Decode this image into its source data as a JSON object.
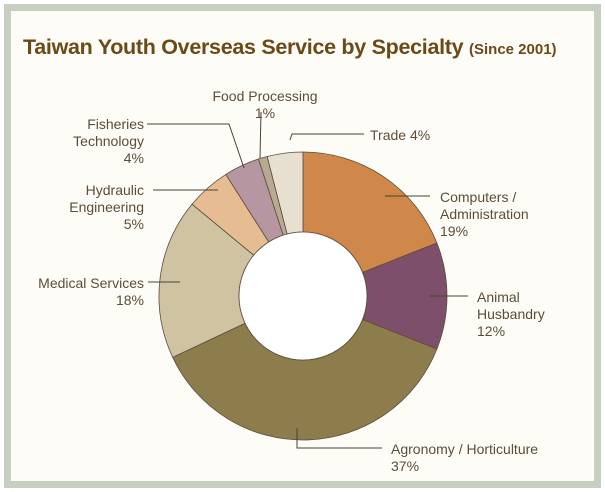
{
  "chart_data": {
    "type": "pie",
    "title": "Taiwan Youth Overseas Service by Specialty",
    "subtitle": "(Since 2001)",
    "slices": [
      {
        "label": "Computers / Administration",
        "label_lines": [
          "Computers /",
          "Administration"
        ],
        "value": 19,
        "value_text": "19%",
        "color": "#d0884a"
      },
      {
        "label": "Animal Husbandry",
        "label_lines": [
          "Animal",
          "Husbandry"
        ],
        "value": 12,
        "value_text": "12%",
        "color": "#7e4f6b"
      },
      {
        "label": "Agronomy / Horticulture",
        "label_lines": [
          "Agronomy / Horticulture"
        ],
        "value": 37,
        "value_text": "37%",
        "color": "#8d7c4c"
      },
      {
        "label": "Medical Services",
        "label_lines": [
          "Medical Services"
        ],
        "value": 18,
        "value_text": "18%",
        "color": "#d0c3a2"
      },
      {
        "label": "Hydraulic Engineering",
        "label_lines": [
          "Hydraulic",
          "Engineering"
        ],
        "value": 5,
        "value_text": "5%",
        "color": "#e6bd93"
      },
      {
        "label": "Fisheries Technology",
        "label_lines": [
          "Fisheries",
          "Technology"
        ],
        "value": 4,
        "value_text": "4%",
        "color": "#b596a1"
      },
      {
        "label": "Food Processing",
        "label_lines": [
          "Food Processing"
        ],
        "value": 1,
        "value_text": "1%",
        "color": "#b8aa90"
      },
      {
        "label": "Trade",
        "label_lines": [
          "Trade 4%"
        ],
        "value": 4,
        "value_text": "",
        "color": "#e7dfd0"
      }
    ],
    "colors": {
      "title": "#6a4a17",
      "frame": "#c7d0c0",
      "background": "#fdfcf7",
      "text": "#5b4d3a",
      "leader": "#4a4236"
    }
  }
}
